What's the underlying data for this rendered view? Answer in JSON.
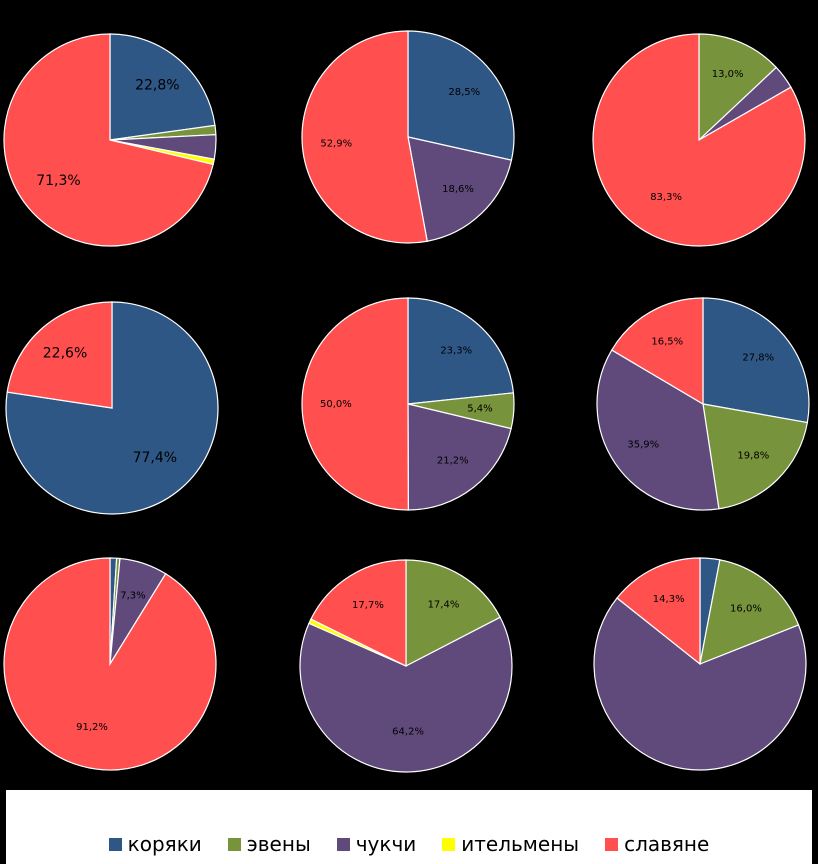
{
  "colors": {
    "коряки": "#2E5786",
    "эвены": "#77933C",
    "чукчи": "#604A7B",
    "ительмены": "#FFFF00",
    "славяне": "#FF4F4F"
  },
  "legend": {
    "items": [
      {
        "label": "коряки",
        "key": "коряки"
      },
      {
        "label": "эвены",
        "key": "эвены"
      },
      {
        "label": "чукчи",
        "key": "чукчи"
      },
      {
        "label": "ительмены",
        "key": "ительмены"
      },
      {
        "label": "славяне",
        "key": "славяне"
      }
    ]
  },
  "chart_data": [
    {
      "type": "pie",
      "categories": [
        "коряки",
        "эвены",
        "чукчи",
        "ительмены",
        "славяне"
      ],
      "values": [
        22.8,
        1.4,
        3.7,
        0.8,
        71.3
      ],
      "labels": [
        "22,8%",
        "",
        "",
        "",
        "71,3%"
      ]
    },
    {
      "type": "pie",
      "categories": [
        "коряки",
        "эвены",
        "чукчи",
        "ительмены",
        "славяне"
      ],
      "values": [
        28.5,
        0,
        18.6,
        0,
        52.9
      ],
      "labels": [
        "28,5%",
        "",
        "18,6%",
        "",
        "52,9%"
      ]
    },
    {
      "type": "pie",
      "categories": [
        "коряки",
        "эвены",
        "чукчи",
        "ительмены",
        "славяне"
      ],
      "values": [
        0,
        13.0,
        3.7,
        0,
        83.3
      ],
      "labels": [
        "",
        "13,0%",
        "",
        "",
        "83,3%"
      ]
    },
    {
      "type": "pie",
      "categories": [
        "коряки",
        "эвены",
        "чукчи",
        "ительмены",
        "славяне"
      ],
      "values": [
        77.4,
        0,
        0,
        0,
        22.6
      ],
      "labels": [
        "77,4%",
        "",
        "",
        "",
        "22,6%"
      ]
    },
    {
      "type": "pie",
      "categories": [
        "коряки",
        "эвены",
        "чукчи",
        "ительмены",
        "славяне"
      ],
      "values": [
        23.3,
        5.4,
        21.2,
        0,
        50.0
      ],
      "labels": [
        "23,3%",
        "5,4%",
        "21,2%",
        "",
        "50,0%"
      ]
    },
    {
      "type": "pie",
      "categories": [
        "коряки",
        "эвены",
        "чукчи",
        "ительмены",
        "славяне"
      ],
      "values": [
        27.8,
        19.8,
        35.9,
        0,
        16.5
      ],
      "labels": [
        "27,8%",
        "19,8%",
        "35,9%",
        "",
        "16,5%"
      ]
    },
    {
      "type": "pie",
      "categories": [
        "коряки",
        "эвены",
        "чукчи",
        "ительмены",
        "славяне"
      ],
      "values": [
        1.0,
        0.5,
        7.3,
        0,
        91.2
      ],
      "labels": [
        "",
        "",
        "7,3%",
        "",
        "91,2%"
      ]
    },
    {
      "type": "pie",
      "categories": [
        "коряки",
        "эвены",
        "чукчи",
        "ительмены",
        "славяне"
      ],
      "values": [
        0,
        17.4,
        64.2,
        0.7,
        17.7
      ],
      "labels": [
        "",
        "17,4%",
        "64,2%",
        "",
        "17,7%"
      ]
    },
    {
      "type": "pie",
      "categories": [
        "коряки",
        "эвены",
        "чукчи",
        "ительмены",
        "славяне"
      ],
      "values": [
        3.0,
        16.0,
        66.7,
        0,
        14.3
      ],
      "labels": [
        "",
        "16,0%",
        "",
        "",
        "14,3%"
      ]
    }
  ]
}
